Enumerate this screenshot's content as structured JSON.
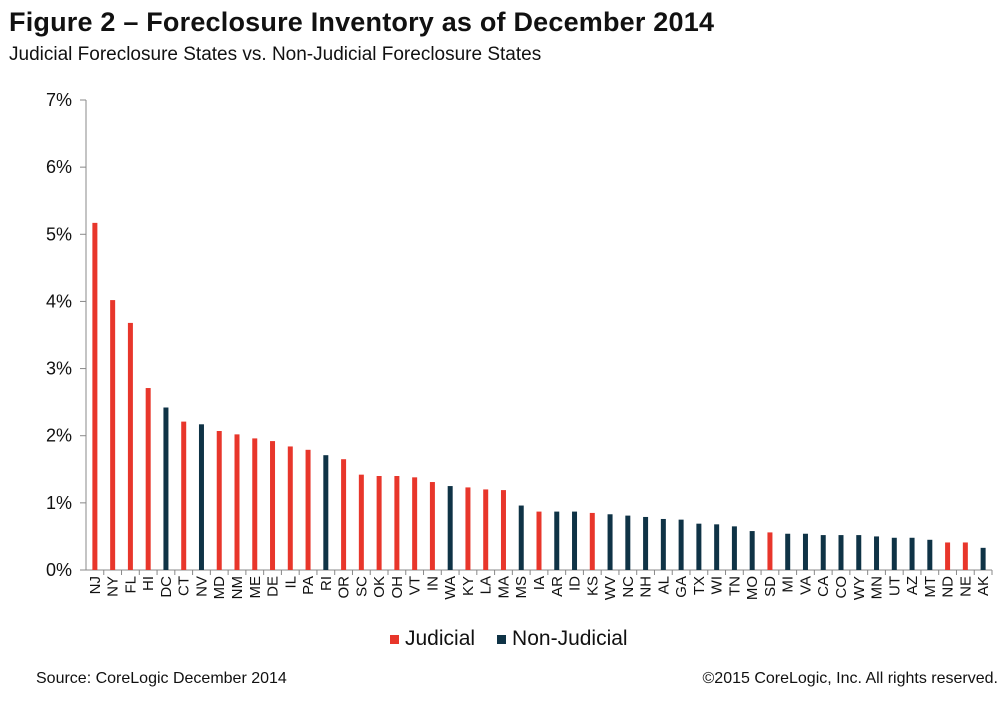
{
  "colors": {
    "judicial": "#e8362b",
    "non_judicial": "#0f3346"
  },
  "footer": {
    "source": "Source: CoreLogic December 2014",
    "copyright": "©2015 CoreLogic, Inc. All rights reserved."
  },
  "chart_data": {
    "type": "bar",
    "title": "Figure 2 – Foreclosure Inventory as of December 2014",
    "subtitle": "Judicial Foreclosure States vs. Non-Judicial Foreclosure States",
    "xlabel": "",
    "ylabel": "",
    "ylim": [
      0,
      7
    ],
    "yticks": [
      "0%",
      "1%",
      "2%",
      "3%",
      "4%",
      "5%",
      "6%",
      "7%"
    ],
    "grid": false,
    "legend": {
      "position": "bottom-center",
      "entries": [
        "Judicial",
        "Non-Judicial"
      ]
    },
    "categories": [
      "NJ",
      "NY",
      "FL",
      "HI",
      "DC",
      "CT",
      "NV",
      "MD",
      "NM",
      "ME",
      "DE",
      "IL",
      "PA",
      "RI",
      "OR",
      "SC",
      "OK",
      "OH",
      "VT",
      "IN",
      "WA",
      "KY",
      "LA",
      "MA",
      "MS",
      "IA",
      "AR",
      "ID",
      "KS",
      "WV",
      "NC",
      "NH",
      "AL",
      "GA",
      "TX",
      "WI",
      "TN",
      "MO",
      "SD",
      "MI",
      "VA",
      "CA",
      "CO",
      "WY",
      "MN",
      "UT",
      "AZ",
      "MT",
      "ND",
      "NE",
      "AK"
    ],
    "values": [
      5.17,
      4.02,
      3.68,
      2.71,
      2.42,
      2.21,
      2.17,
      2.07,
      2.02,
      1.96,
      1.92,
      1.84,
      1.79,
      1.71,
      1.65,
      1.42,
      1.4,
      1.4,
      1.38,
      1.31,
      1.25,
      1.23,
      1.2,
      1.19,
      0.96,
      0.87,
      0.87,
      0.87,
      0.85,
      0.83,
      0.81,
      0.79,
      0.76,
      0.75,
      0.69,
      0.68,
      0.65,
      0.58,
      0.56,
      0.54,
      0.54,
      0.52,
      0.52,
      0.52,
      0.5,
      0.48,
      0.48,
      0.45,
      0.41,
      0.41,
      0.33
    ],
    "groups": [
      "Judicial",
      "Judicial",
      "Judicial",
      "Judicial",
      "Non-Judicial",
      "Judicial",
      "Non-Judicial",
      "Judicial",
      "Judicial",
      "Judicial",
      "Judicial",
      "Judicial",
      "Judicial",
      "Non-Judicial",
      "Judicial",
      "Judicial",
      "Judicial",
      "Judicial",
      "Judicial",
      "Judicial",
      "Non-Judicial",
      "Judicial",
      "Judicial",
      "Judicial",
      "Non-Judicial",
      "Judicial",
      "Non-Judicial",
      "Non-Judicial",
      "Judicial",
      "Non-Judicial",
      "Non-Judicial",
      "Non-Judicial",
      "Non-Judicial",
      "Non-Judicial",
      "Non-Judicial",
      "Non-Judicial",
      "Non-Judicial",
      "Non-Judicial",
      "Judicial",
      "Non-Judicial",
      "Non-Judicial",
      "Non-Judicial",
      "Non-Judicial",
      "Non-Judicial",
      "Non-Judicial",
      "Non-Judicial",
      "Non-Judicial",
      "Non-Judicial",
      "Judicial",
      "Judicial",
      "Non-Judicial"
    ]
  }
}
